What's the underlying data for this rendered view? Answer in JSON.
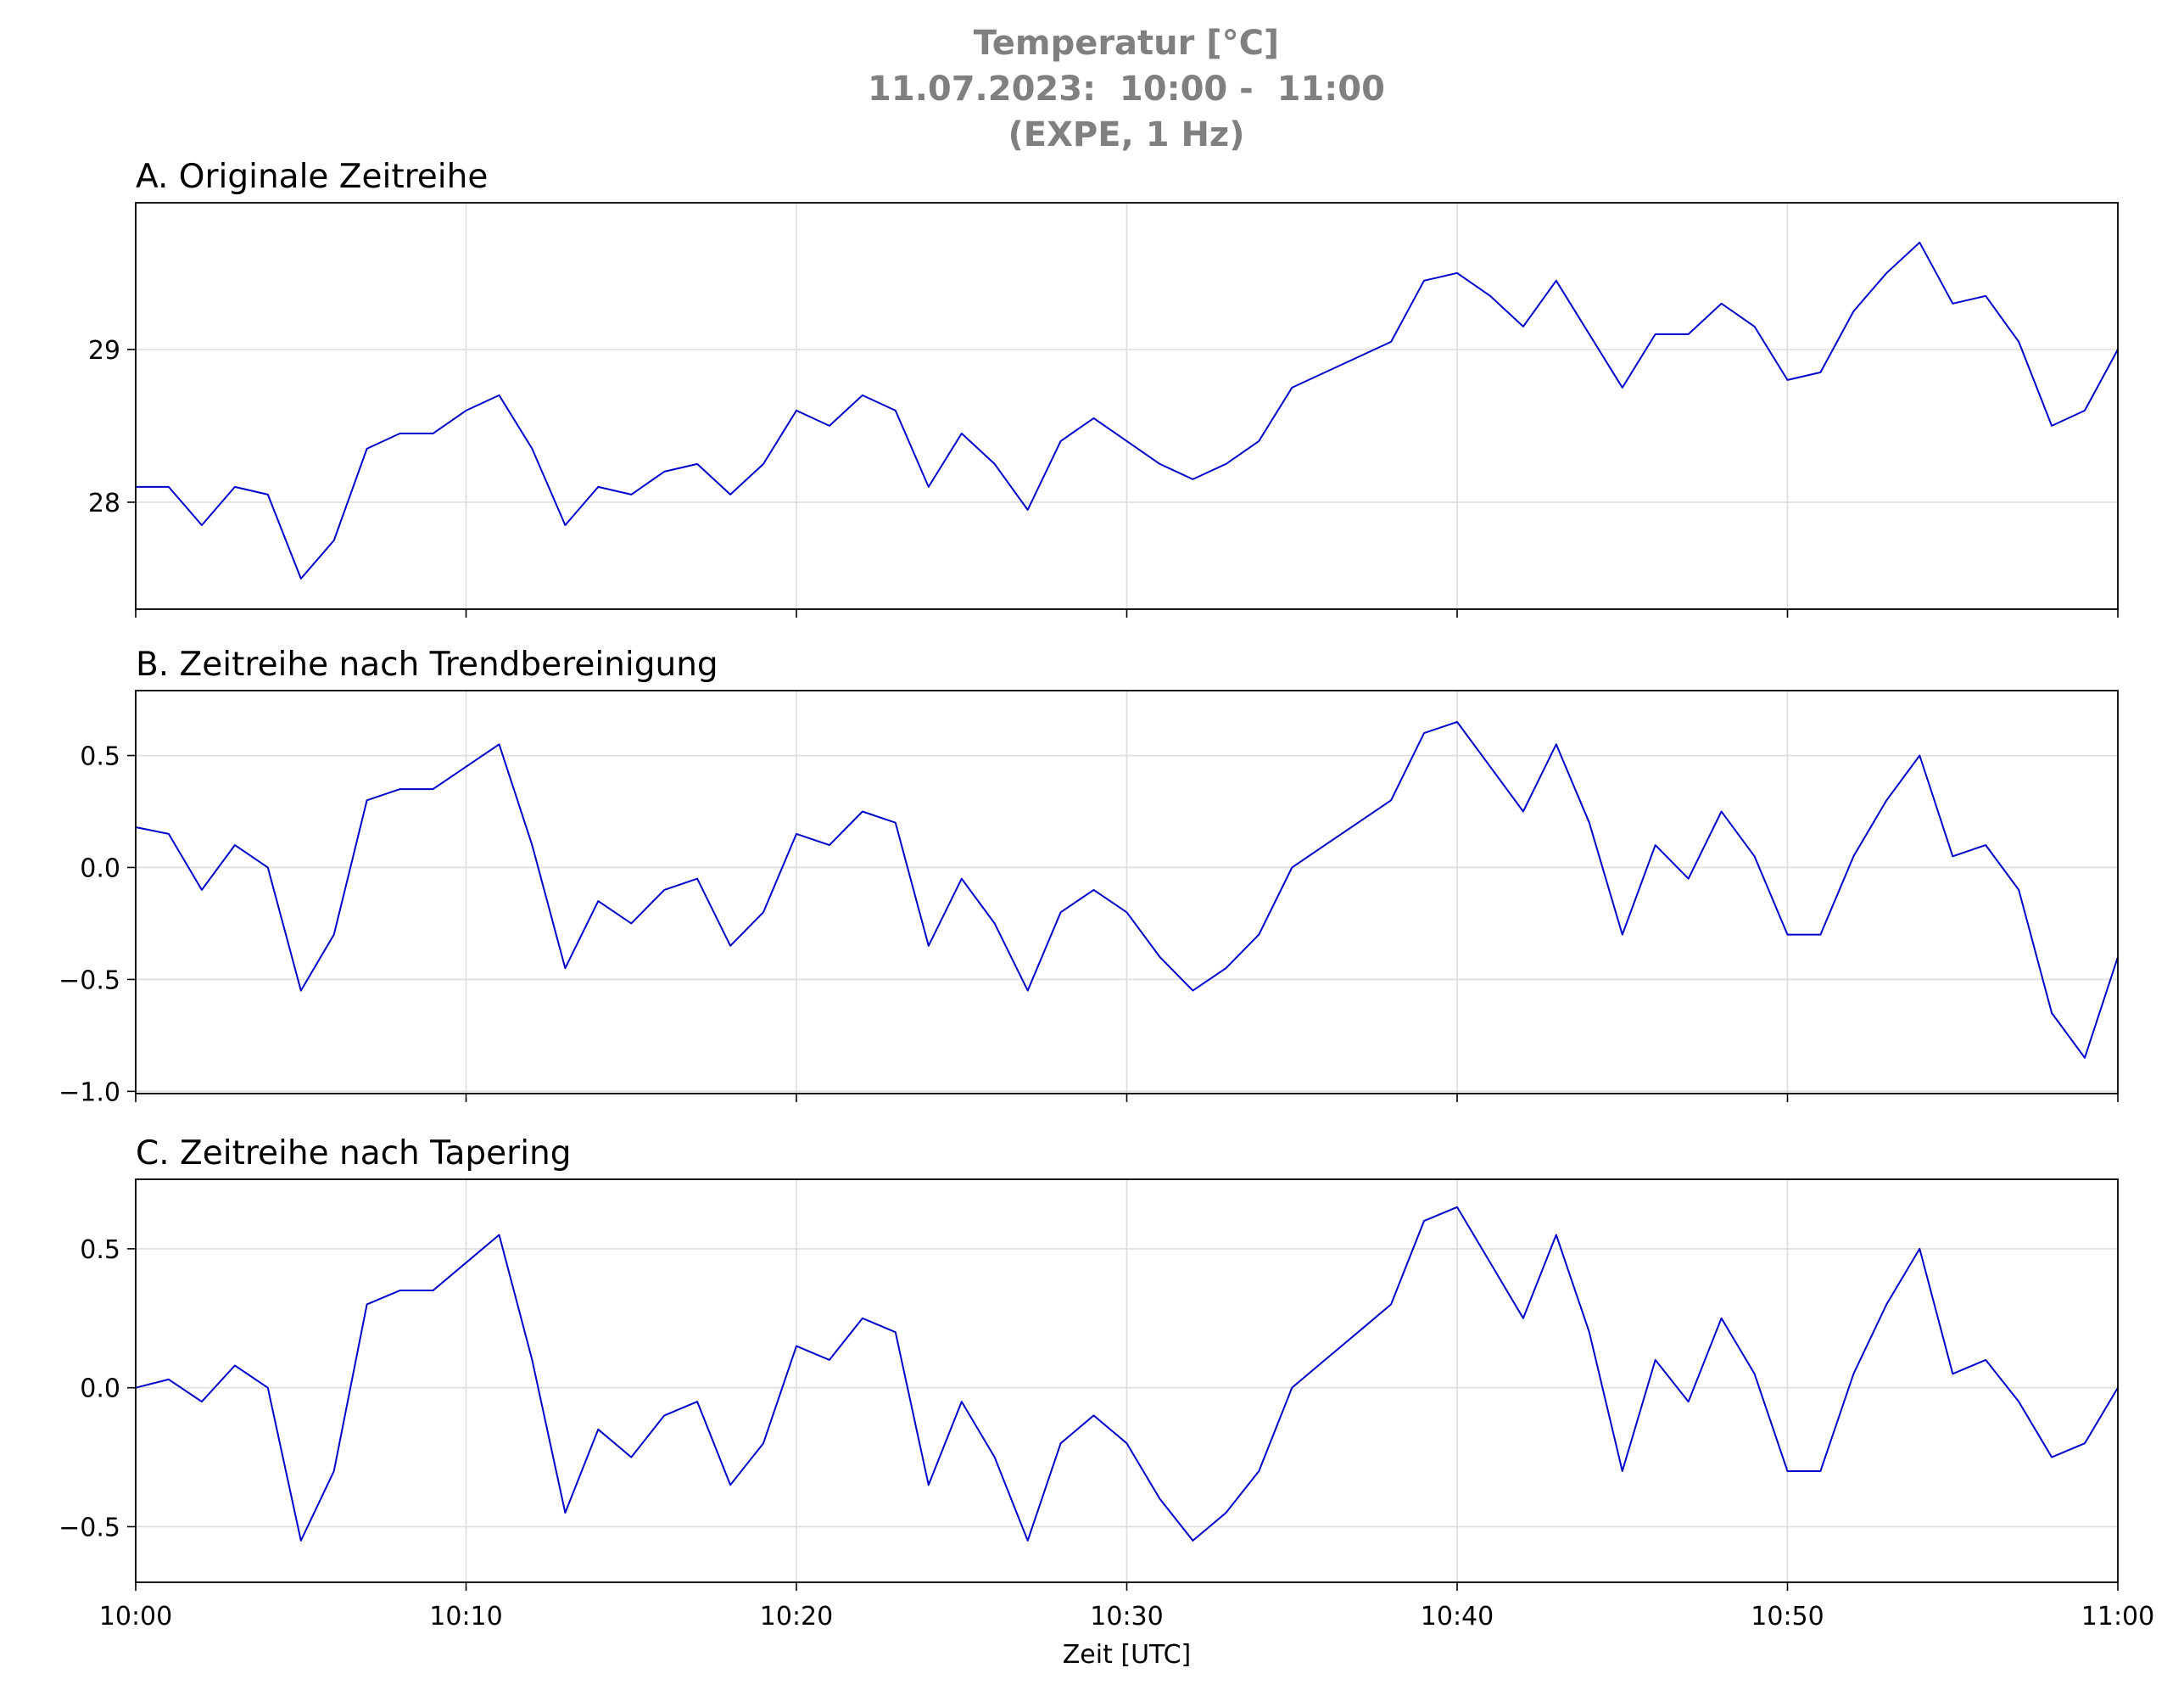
{
  "figure_title": [
    "Temperatur [°C]",
    "11.07.2023:  10:00 -  11:00",
    "(EXPE, 1 Hz)"
  ],
  "chart_data": [
    {
      "type": "line",
      "title": "A. Originale Zeitreihe",
      "x": [
        0,
        1,
        2,
        3,
        4,
        5,
        6,
        7,
        8,
        9,
        10,
        11,
        12,
        13,
        14,
        15,
        16,
        17,
        18,
        19,
        20,
        21,
        22,
        23,
        24,
        25,
        26,
        27,
        28,
        29,
        30,
        31,
        32,
        33,
        34,
        35,
        36,
        37,
        38,
        39,
        40,
        41,
        42,
        43,
        44,
        45,
        46,
        47,
        48,
        49,
        50,
        51,
        52,
        53,
        54,
        55,
        56,
        57,
        58,
        59,
        60
      ],
      "series": [
        {
          "color": "#0000cd",
          "values": [
            28.1,
            28.1,
            27.85,
            28.1,
            28.05,
            27.5,
            27.75,
            28.35,
            28.45,
            28.45,
            28.6,
            28.7,
            28.35,
            27.85,
            28.1,
            28.05,
            28.2,
            28.25,
            28.05,
            28.25,
            28.6,
            28.5,
            28.7,
            28.6,
            28.1,
            28.45,
            28.25,
            27.95,
            28.4,
            28.55,
            28.4,
            28.25,
            28.15,
            28.25,
            28.4,
            28.75,
            28.85,
            28.95,
            29.05,
            29.45,
            29.5,
            29.35,
            29.15,
            29.45,
            29.1,
            28.75,
            29.1,
            29.1,
            29.3,
            29.15,
            28.8,
            28.85,
            29.25,
            29.5,
            29.7,
            29.3,
            29.35,
            29.05,
            28.5,
            28.6,
            29.0
          ]
        }
      ],
      "xlim": [
        0,
        60
      ],
      "xticks": [
        0,
        10,
        20,
        30,
        40,
        50,
        60
      ],
      "ylim": [
        27.3,
        29.96
      ],
      "yticks": [
        28,
        29
      ],
      "grid": true
    },
    {
      "type": "line",
      "title": "B. Zeitreihe nach Trendbereinigung",
      "x": [
        0,
        1,
        2,
        3,
        4,
        5,
        6,
        7,
        8,
        9,
        10,
        11,
        12,
        13,
        14,
        15,
        16,
        17,
        18,
        19,
        20,
        21,
        22,
        23,
        24,
        25,
        26,
        27,
        28,
        29,
        30,
        31,
        32,
        33,
        34,
        35,
        36,
        37,
        38,
        39,
        40,
        41,
        42,
        43,
        44,
        45,
        46,
        47,
        48,
        49,
        50,
        51,
        52,
        53,
        54,
        55,
        56,
        57,
        58,
        59,
        60
      ],
      "series": [
        {
          "color": "#0000cd",
          "values": [
            0.18,
            0.15,
            -0.1,
            0.1,
            0.0,
            -0.55,
            -0.3,
            0.3,
            0.35,
            0.35,
            0.45,
            0.55,
            0.1,
            -0.45,
            -0.15,
            -0.25,
            -0.1,
            -0.05,
            -0.35,
            -0.2,
            0.15,
            0.1,
            0.25,
            0.2,
            -0.35,
            -0.05,
            -0.25,
            -0.55,
            -0.2,
            -0.1,
            -0.2,
            -0.4,
            -0.55,
            -0.45,
            -0.3,
            0.0,
            0.1,
            0.2,
            0.3,
            0.6,
            0.65,
            0.45,
            0.25,
            0.55,
            0.2,
            -0.3,
            0.1,
            -0.05,
            0.25,
            0.05,
            -0.3,
            -0.3,
            0.05,
            0.3,
            0.5,
            0.05,
            0.1,
            -0.1,
            -0.65,
            -0.85,
            -0.4
          ]
        }
      ],
      "xlim": [
        0,
        60
      ],
      "xticks": [
        0,
        10,
        20,
        30,
        40,
        50,
        60
      ],
      "ylim": [
        -1.01,
        0.79
      ],
      "yticks": [
        {
          "value": -1,
          "label": "−1.0"
        },
        {
          "value": -0.5,
          "label": "−0.5"
        },
        {
          "value": 0,
          "label": "0.0"
        },
        0.5
      ],
      "grid": true
    },
    {
      "type": "line",
      "title": "C. Zeitreihe nach Tapering",
      "xlabel": "Zeit [UTC]",
      "x": [
        0,
        1,
        2,
        3,
        4,
        5,
        6,
        7,
        8,
        9,
        10,
        11,
        12,
        13,
        14,
        15,
        16,
        17,
        18,
        19,
        20,
        21,
        22,
        23,
        24,
        25,
        26,
        27,
        28,
        29,
        30,
        31,
        32,
        33,
        34,
        35,
        36,
        37,
        38,
        39,
        40,
        41,
        42,
        43,
        44,
        45,
        46,
        47,
        48,
        49,
        50,
        51,
        52,
        53,
        54,
        55,
        56,
        57,
        58,
        59,
        60
      ],
      "series": [
        {
          "color": "#0000cd",
          "values": [
            0.0,
            0.03,
            -0.05,
            0.08,
            0.0,
            -0.55,
            -0.3,
            0.3,
            0.35,
            0.35,
            0.45,
            0.55,
            0.1,
            -0.45,
            -0.15,
            -0.25,
            -0.1,
            -0.05,
            -0.35,
            -0.2,
            0.15,
            0.1,
            0.25,
            0.2,
            -0.35,
            -0.05,
            -0.25,
            -0.55,
            -0.2,
            -0.1,
            -0.2,
            -0.4,
            -0.55,
            -0.45,
            -0.3,
            0.0,
            0.1,
            0.2,
            0.3,
            0.6,
            0.65,
            0.45,
            0.25,
            0.55,
            0.2,
            -0.3,
            0.1,
            -0.05,
            0.25,
            0.05,
            -0.3,
            -0.3,
            0.05,
            0.3,
            0.5,
            0.05,
            0.1,
            -0.05,
            -0.25,
            -0.2,
            0.0
          ]
        }
      ],
      "xlim": [
        0,
        60
      ],
      "xticks": [
        {
          "value": 0,
          "label": "10:00"
        },
        {
          "value": 10,
          "label": "10:10"
        },
        {
          "value": 20,
          "label": "10:20"
        },
        {
          "value": 30,
          "label": "10:30"
        },
        {
          "value": 40,
          "label": "10:40"
        },
        {
          "value": 50,
          "label": "10:50"
        },
        {
          "value": 60,
          "label": "11:00"
        }
      ],
      "ylim": [
        -0.7,
        0.75
      ],
      "yticks": [
        {
          "value": -0.5,
          "label": "−0.5"
        },
        {
          "value": 0,
          "label": "0.0"
        },
        0.5
      ],
      "grid": true
    }
  ]
}
